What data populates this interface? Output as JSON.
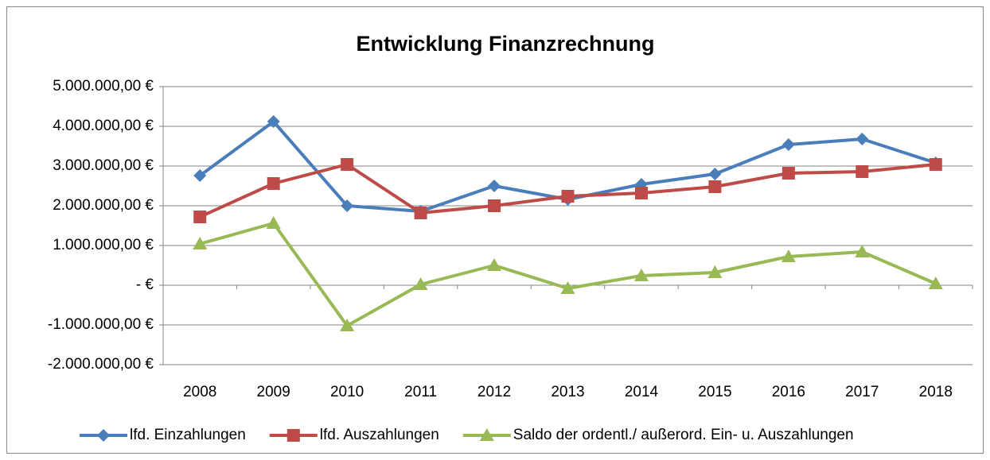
{
  "chart_data": {
    "type": "line",
    "title": "Entwicklung Finanzrechnung",
    "categories": [
      "2008",
      "2009",
      "2010",
      "2011",
      "2012",
      "2013",
      "2014",
      "2015",
      "2016",
      "2017",
      "2018"
    ],
    "series": [
      {
        "name": "lfd. Einzahlungen",
        "color": "#4a7ebb",
        "marker": "diamond",
        "values": [
          2760000,
          4120000,
          2000000,
          1860000,
          2500000,
          2160000,
          2540000,
          2800000,
          3540000,
          3680000,
          3080000
        ]
      },
      {
        "name": "lfd. Auszahlungen",
        "color": "#be4b48",
        "marker": "square",
        "values": [
          1720000,
          2560000,
          3040000,
          1820000,
          2000000,
          2240000,
          2320000,
          2480000,
          2820000,
          2860000,
          3040000
        ]
      },
      {
        "name": "Saldo der ordentl./ außerord. Ein- u. Auszahlungen",
        "color": "#98b954",
        "marker": "triangle",
        "values": [
          1040000,
          1560000,
          -1020000,
          20000,
          500000,
          -80000,
          240000,
          320000,
          720000,
          840000,
          40000
        ]
      }
    ],
    "ylim": [
      -2000000,
      5000000
    ],
    "yticks": [
      {
        "value": -2000000,
        "label": "-2.000.000,00 €"
      },
      {
        "value": -1000000,
        "label": "-1.000.000,00 €"
      },
      {
        "value": 0,
        "label": "- €"
      },
      {
        "value": 1000000,
        "label": "1.000.000,00 €"
      },
      {
        "value": 2000000,
        "label": "2.000.000,00 €"
      },
      {
        "value": 3000000,
        "label": "3.000.000,00 €"
      },
      {
        "value": 4000000,
        "label": "4.000.000,00 €"
      },
      {
        "value": 5000000,
        "label": "5.000.000,00 €"
      }
    ],
    "grid": true,
    "legend": "bottom"
  }
}
